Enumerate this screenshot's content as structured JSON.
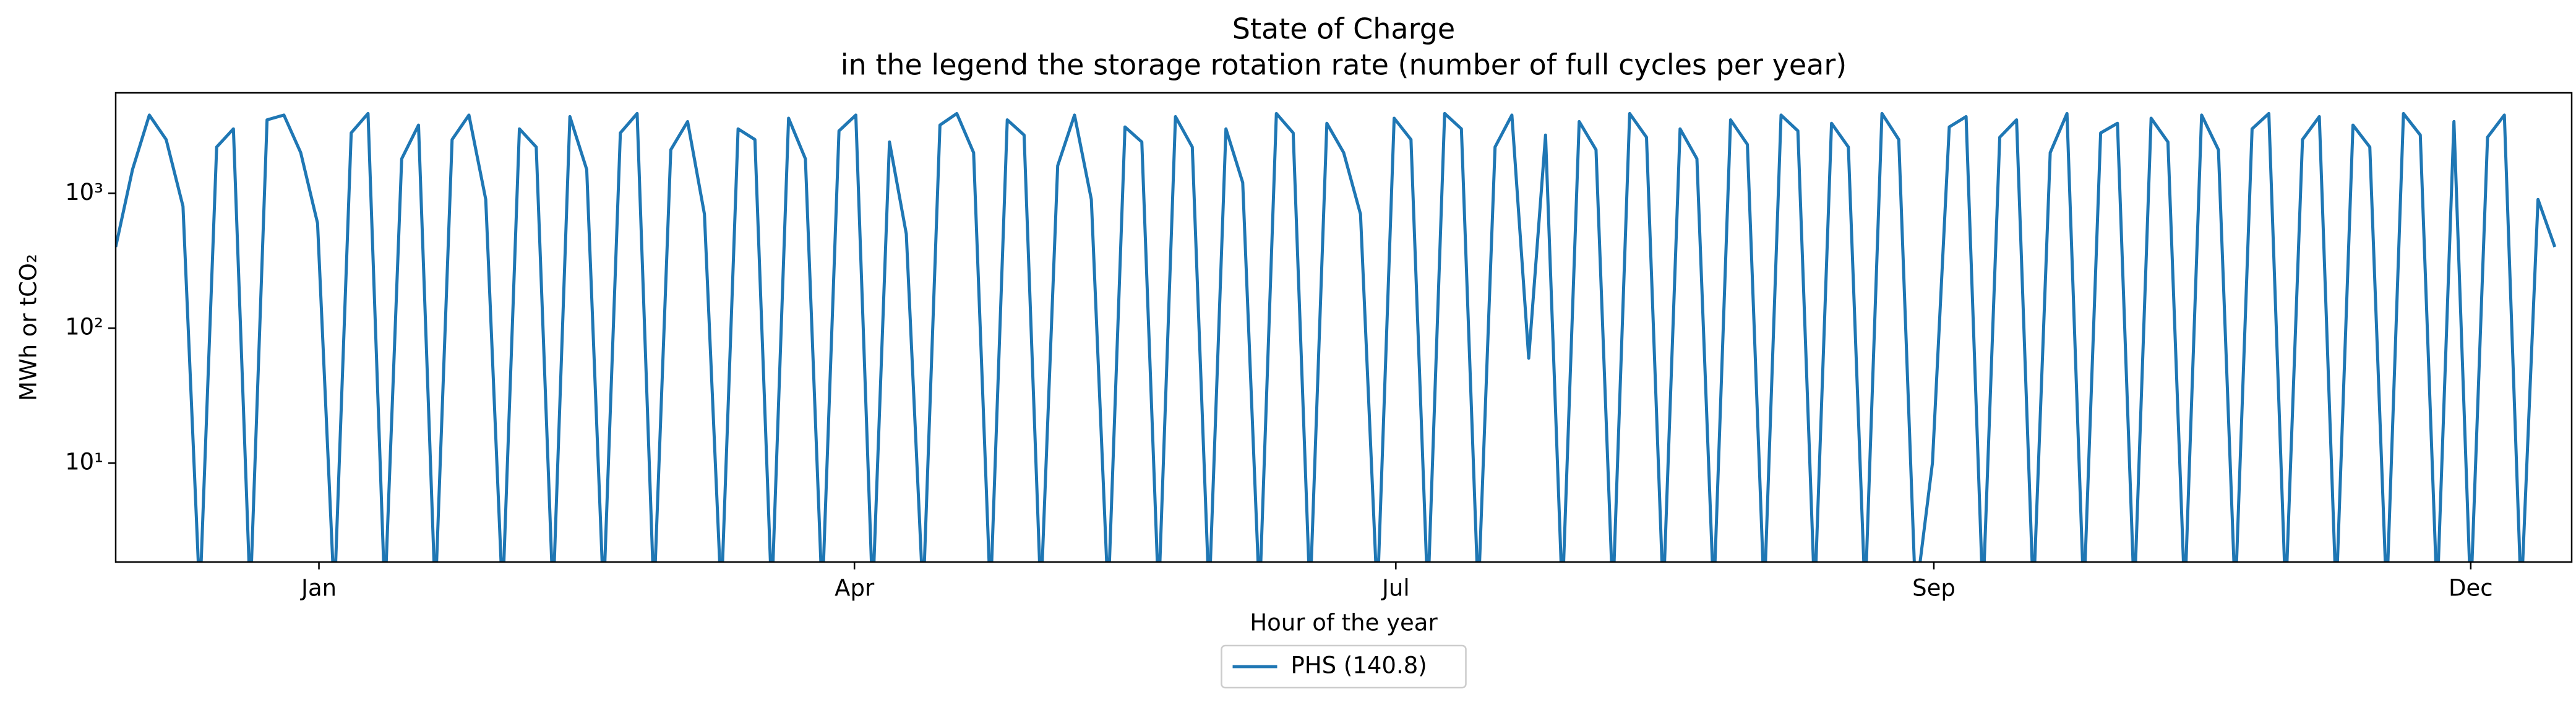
{
  "chart_data": {
    "type": "line",
    "title": "State of Charge",
    "subtitle": "in the legend the storage rotation rate (number of full cycles per year)",
    "xlabel": "Hour of the year",
    "ylabel": "MWh or tCO₂",
    "log_y": true,
    "legend_position": "below",
    "xlim": [
      0,
      8760
    ],
    "xticks": [
      {
        "value": 725,
        "label": "Jan"
      },
      {
        "value": 2635,
        "label": "Apr"
      },
      {
        "value": 4566,
        "label": "Jul"
      },
      {
        "value": 6485,
        "label": "Sep"
      },
      {
        "value": 8400,
        "label": "Dec"
      }
    ],
    "ylim": [
      1.85,
      5550
    ],
    "yticks": [
      {
        "value": 10,
        "label": "10¹"
      },
      {
        "value": 100,
        "label": "10²"
      },
      {
        "value": 1000,
        "label": "10³"
      }
    ],
    "x": [
      0,
      60,
      120,
      180,
      240,
      300,
      360,
      420,
      480,
      540,
      600,
      660,
      720,
      780,
      840,
      900,
      960,
      1020,
      1080,
      1140,
      1200,
      1260,
      1320,
      1380,
      1440,
      1500,
      1560,
      1620,
      1680,
      1740,
      1800,
      1860,
      1920,
      1980,
      2040,
      2100,
      2160,
      2220,
      2280,
      2340,
      2400,
      2460,
      2520,
      2580,
      2640,
      2700,
      2760,
      2820,
      2880,
      2940,
      3000,
      3060,
      3120,
      3180,
      3240,
      3300,
      3360,
      3420,
      3480,
      3540,
      3600,
      3660,
      3720,
      3780,
      3840,
      3900,
      3960,
      4020,
      4080,
      4140,
      4200,
      4260,
      4320,
      4380,
      4440,
      4500,
      4560,
      4620,
      4680,
      4740,
      4800,
      4860,
      4920,
      4980,
      5040,
      5100,
      5160,
      5220,
      5280,
      5340,
      5400,
      5460,
      5520,
      5580,
      5640,
      5700,
      5760,
      5820,
      5880,
      5940,
      6000,
      6060,
      6120,
      6180,
      6240,
      6300,
      6360,
      6420,
      6480,
      6540,
      6600,
      6660,
      6720,
      6780,
      6840,
      6900,
      6960,
      7020,
      7080,
      7140,
      7200,
      7260,
      7320,
      7380,
      7440,
      7500,
      7560,
      7620,
      7680,
      7740,
      7800,
      7860,
      7920,
      7980,
      8040,
      8100,
      8160,
      8220,
      8280,
      8340,
      8400,
      8460,
      8520,
      8580,
      8640,
      8700
    ],
    "series": [
      {
        "name": "PHS (140.8)",
        "color": "#1f77b4",
        "values": [
          400,
          1500,
          3800,
          2500,
          800,
          1,
          2200,
          3000,
          1,
          3500,
          3800,
          2000,
          600,
          1,
          2800,
          3900,
          1,
          1800,
          3200,
          1,
          2500,
          3800,
          900,
          1,
          3000,
          2200,
          1,
          3700,
          1500,
          1,
          2800,
          3900,
          1,
          2100,
          3400,
          700,
          1,
          3000,
          2500,
          1,
          3600,
          1800,
          1,
          2900,
          3800,
          1,
          2400,
          500,
          1,
          3200,
          3900,
          2000,
          1,
          3500,
          2700,
          1,
          1600,
          3800,
          900,
          1,
          3100,
          2400,
          1,
          3700,
          2200,
          1,
          3000,
          1200,
          1,
          3900,
          2800,
          1,
          3300,
          2000,
          700,
          1,
          3600,
          2500,
          1,
          3900,
          3000,
          1,
          2200,
          3800,
          60,
          2700,
          1,
          3400,
          2100,
          1,
          3900,
          2600,
          1,
          3000,
          1800,
          1,
          3500,
          2300,
          1,
          3800,
          2900,
          1,
          3300,
          2200,
          1,
          3900,
          2500,
          1,
          10,
          3100,
          3700,
          1,
          2600,
          3500,
          1,
          2000,
          3900,
          1,
          2800,
          3300,
          1,
          3600,
          2400,
          1,
          3800,
          2100,
          1,
          3000,
          3900,
          1,
          2500,
          3700,
          1,
          3200,
          2200,
          1,
          3900,
          2700,
          1,
          3400,
          1,
          2600,
          3800,
          1,
          900,
          400
        ]
      }
    ]
  }
}
